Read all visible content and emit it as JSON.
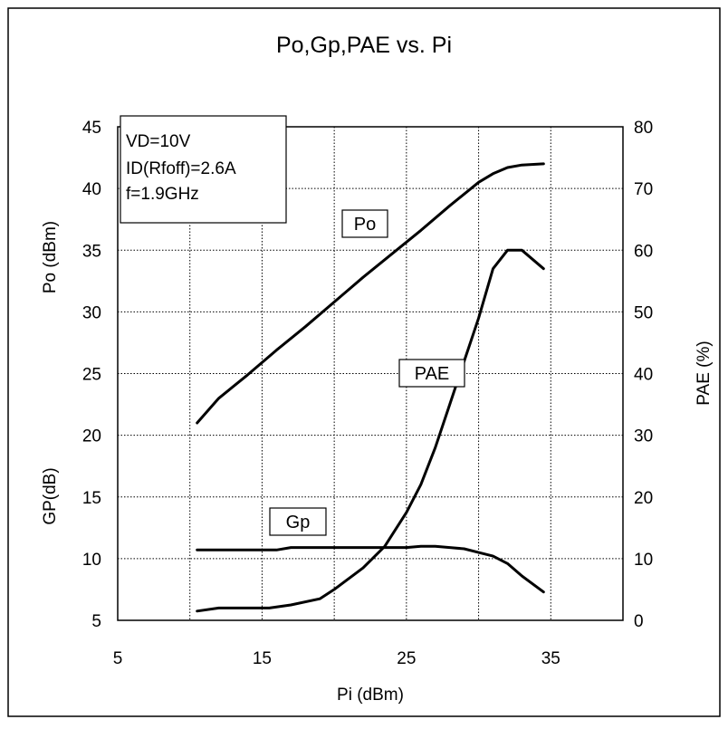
{
  "chart_data": {
    "type": "line",
    "title": "Po,Gp,PAE vs. Pi",
    "xlabel": "Pi (dBm)",
    "ylabel_left_upper": "Po (dBm)",
    "ylabel_left_lower": "GP(dB)",
    "ylabel_right": "PAE (%)",
    "xlim": [
      5,
      40
    ],
    "ylim_left": [
      5,
      45
    ],
    "ylim_right": [
      0,
      80
    ],
    "xticks": [
      "5",
      "15",
      "25",
      "35"
    ],
    "yticks_left": [
      "45",
      "40",
      "35",
      "30",
      "25",
      "20",
      "15",
      "10",
      "5"
    ],
    "yticks_right": [
      "80",
      "70",
      "60",
      "50",
      "40",
      "30",
      "20",
      "10",
      "0"
    ],
    "grid": true,
    "conditions": [
      "VD=10V",
      "ID(Rfoff)=2.6A",
      "f=1.9GHz"
    ],
    "series": [
      {
        "name": "Po",
        "axis": "left",
        "x": [
          10.5,
          12,
          14,
          16,
          18,
          20,
          22,
          24,
          26,
          28,
          30,
          31,
          32,
          33,
          34.5
        ],
        "y": [
          21,
          23,
          24.9,
          26.9,
          28.8,
          30.8,
          32.8,
          34.7,
          36.6,
          38.6,
          40.5,
          41.2,
          41.7,
          41.9,
          42
        ]
      },
      {
        "name": "PAE",
        "axis": "right",
        "x": [
          10.5,
          12,
          14,
          15.5,
          17,
          19,
          20,
          22,
          23.5,
          25,
          26,
          27,
          28,
          29,
          30,
          31,
          32,
          33,
          34.5
        ],
        "y": [
          1.5,
          2,
          2,
          2,
          2.5,
          3.5,
          5,
          8.5,
          12,
          17.5,
          22,
          28,
          35,
          42,
          49,
          57,
          60,
          60,
          57
        ]
      },
      {
        "name": "Gp",
        "axis": "left",
        "x": [
          10.5,
          13,
          16,
          17,
          20,
          23,
          25,
          26,
          27,
          28,
          29,
          30,
          31,
          32,
          33,
          34.5
        ],
        "y": [
          10.7,
          10.7,
          10.7,
          10.9,
          10.9,
          10.9,
          10.9,
          11,
          11,
          10.9,
          10.8,
          10.5,
          10.2,
          9.6,
          8.6,
          7.3
        ]
      }
    ]
  }
}
